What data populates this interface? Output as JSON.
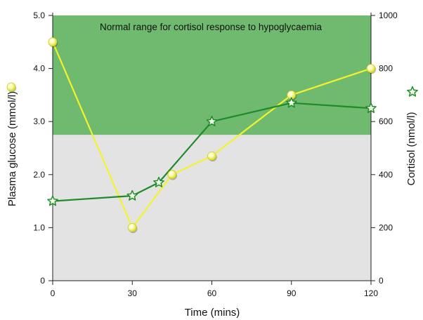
{
  "chart_data": {
    "type": "line",
    "xlabel": "Time (mins)",
    "ylabel_left": "Plasma glucose (mmol/l)",
    "ylabel_right": "Cortisol (nmol/l)",
    "x_ticks": [
      0,
      30,
      60,
      90,
      120
    ],
    "xlim": [
      0,
      120
    ],
    "y_left_ticks": [
      0,
      1.0,
      2.0,
      3.0,
      4.0,
      5.0
    ],
    "y_left_tick_labels": [
      "0",
      "1.0",
      "2.0",
      "3.0",
      "4.0",
      "5.0"
    ],
    "ylim_left": [
      0,
      5
    ],
    "y_right_ticks": [
      0,
      200,
      400,
      600,
      800,
      1000
    ],
    "ylim_right": [
      0,
      1000
    ],
    "normal_range": {
      "label": "Normal range for cortisol response to hypoglycaemia",
      "cortisol_min": 550,
      "cortisol_max": 1000,
      "color": "#6fba6f"
    },
    "background_color": "#e3e3e3",
    "series": [
      {
        "axis": "left",
        "marker": "circle",
        "color": "#f2f22e",
        "x": [
          0,
          30,
          45,
          60,
          90,
          120
        ],
        "y": [
          4.5,
          1.0,
          2.0,
          2.35,
          3.5,
          4.0
        ]
      },
      {
        "axis": "right",
        "marker": "star",
        "color": "#1f8a2a",
        "x": [
          0,
          30,
          40,
          60,
          90,
          120
        ],
        "y": [
          300,
          320,
          370,
          600,
          670,
          650
        ]
      }
    ]
  }
}
